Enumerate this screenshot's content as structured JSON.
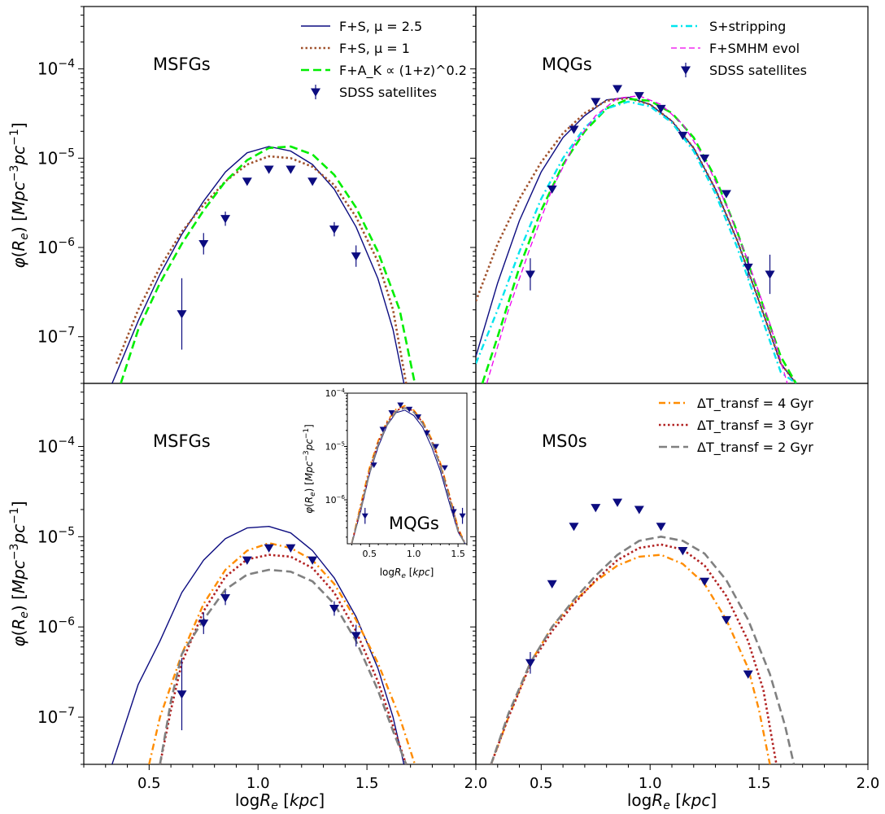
{
  "figure": {
    "ylabel_top": "φ(R_e) [Mpc^-3 pc^-1]",
    "ylabel_bottom": "φ(R_e) [Mpc^-3 pc^-1]",
    "xlabel_left": "logR_e [kpc]",
    "xlabel_right": "logR_e [kpc]"
  },
  "colors": {
    "navy": "#0c0c80",
    "brown": "#a0522d",
    "green": "#00ee00",
    "cyan": "#00e5ee",
    "magenta": "#ee00ee",
    "orange": "#ff8c00",
    "darkred": "#b22222",
    "gray": "#808080"
  },
  "chart_data": [
    {
      "type": "line",
      "panel": "top-left",
      "title": "MSFGs",
      "xlim": [
        0.2,
        2.0
      ],
      "ylim": [
        3e-08,
        0.0005
      ],
      "yscale": "log",
      "legend_position": "top-right",
      "xticks": [],
      "series": [
        {
          "name": "F+S, μ = 2.5",
          "color": "navy",
          "style": "solid",
          "x": [
            0.33,
            0.45,
            0.55,
            0.65,
            0.75,
            0.85,
            0.95,
            1.05,
            1.15,
            1.25,
            1.35,
            1.45,
            1.55,
            1.62,
            1.67
          ],
          "y": [
            3e-08,
            1.5e-07,
            5e-07,
            1.4e-06,
            3.3e-06,
            7e-06,
            1.15e-05,
            1.35e-05,
            1.2e-05,
            8.5e-06,
            4.5e-06,
            1.7e-06,
            4.5e-07,
            1.2e-07,
            3e-08
          ]
        },
        {
          "name": "F+S, μ = 1",
          "color": "brown",
          "style": "dotted",
          "x": [
            0.35,
            0.45,
            0.55,
            0.65,
            0.75,
            0.85,
            0.95,
            1.05,
            1.15,
            1.25,
            1.35,
            1.45,
            1.55,
            1.62,
            1.68
          ],
          "y": [
            5e-08,
            2e-07,
            6e-07,
            1.5e-06,
            3e-06,
            5.5e-06,
            8.5e-06,
            1.05e-05,
            1e-05,
            8e-06,
            5e-06,
            2.2e-06,
            7e-07,
            2e-07,
            3e-08
          ]
        },
        {
          "name": "F+A_K ∝ (1+z)^0.2",
          "color": "green",
          "style": "dashed",
          "x": [
            0.37,
            0.45,
            0.55,
            0.65,
            0.75,
            0.85,
            0.95,
            1.05,
            1.15,
            1.25,
            1.35,
            1.45,
            1.55,
            1.65,
            1.72
          ],
          "y": [
            3e-08,
            1.2e-07,
            4e-07,
            1.1e-06,
            2.6e-06,
            5.5e-06,
            9.5e-06,
            1.3e-05,
            1.35e-05,
            1.1e-05,
            6.5e-06,
            2.8e-06,
            9e-07,
            2e-07,
            3e-08
          ]
        },
        {
          "name": "SDSS satellites",
          "color": "navy",
          "style": "markers",
          "x": [
            0.65,
            0.75,
            0.85,
            0.95,
            1.05,
            1.15,
            1.25,
            1.35,
            1.45
          ],
          "y": [
            1.8e-07,
            1.1e-06,
            2.1e-06,
            5.5e-06,
            7.5e-06,
            7.5e-06,
            5.5e-06,
            1.6e-06,
            8e-07
          ],
          "err": [
            0.4,
            0.12,
            0.08,
            0,
            0,
            0,
            0,
            0.08,
            0.12
          ]
        }
      ]
    },
    {
      "type": "line",
      "panel": "top-right",
      "title": "MQGs",
      "xlim": [
        0.2,
        2.0
      ],
      "ylim": [
        3e-08,
        0.0005
      ],
      "yscale": "log",
      "legend_position": "top-right",
      "xticks": [],
      "series": [
        {
          "name": "",
          "color": "navy",
          "style": "solid",
          "x": [
            0.2,
            0.3,
            0.4,
            0.5,
            0.6,
            0.7,
            0.8,
            0.9,
            1.0,
            1.1,
            1.2,
            1.3,
            1.4,
            1.5,
            1.6,
            1.67
          ],
          "y": [
            6e-08,
            4e-07,
            2e-06,
            7e-06,
            1.7e-05,
            3e-05,
            4.5e-05,
            4.8e-05,
            4e-05,
            2.6e-05,
            1.3e-05,
            4.5e-06,
            1.2e-06,
            2.5e-07,
            5e-08,
            3e-08
          ]
        },
        {
          "name": "",
          "color": "brown",
          "style": "dotted",
          "x": [
            0.2,
            0.3,
            0.4,
            0.5,
            0.6,
            0.7,
            0.8,
            0.9,
            1.0,
            1.1,
            1.2,
            1.3,
            1.4,
            1.5,
            1.6,
            1.67
          ],
          "y": [
            2.5e-07,
            1.1e-06,
            3.5e-06,
            9e-06,
            1.9e-05,
            3.2e-05,
            4.4e-05,
            4.7e-05,
            4e-05,
            2.6e-05,
            1.3e-05,
            4.5e-06,
            1.2e-06,
            2.5e-07,
            5e-08,
            3e-08
          ]
        },
        {
          "name": "",
          "color": "green",
          "style": "dashed",
          "x": [
            0.23,
            0.3,
            0.4,
            0.5,
            0.6,
            0.7,
            0.8,
            0.9,
            1.0,
            1.1,
            1.2,
            1.3,
            1.4,
            1.5,
            1.6,
            1.67
          ],
          "y": [
            3e-08,
            1e-07,
            6e-07,
            2.6e-06,
            8.5e-06,
            2e-05,
            3.6e-05,
            4.6e-05,
            4.4e-05,
            3.2e-05,
            1.7e-05,
            6e-06,
            1.5e-06,
            3e-07,
            6e-08,
            3e-08
          ]
        },
        {
          "name": "S+stripping",
          "color": "cyan",
          "style": "dashdot",
          "x": [
            0.2,
            0.3,
            0.4,
            0.5,
            0.6,
            0.7,
            0.8,
            0.9,
            1.0,
            1.1,
            1.2,
            1.3,
            1.4,
            1.5,
            1.6,
            1.67
          ],
          "y": [
            5e-08,
            2e-07,
            9e-07,
            3.5e-06,
            1e-05,
            2.2e-05,
            3.6e-05,
            4.3e-05,
            3.8e-05,
            2.5e-05,
            1.2e-05,
            4e-06,
            1e-06,
            2e-07,
            4e-08,
            3e-08
          ]
        },
        {
          "name": "F+SMHM evol",
          "color": "magenta",
          "style": "dashed-thin",
          "x": [
            0.25,
            0.35,
            0.45,
            0.55,
            0.65,
            0.75,
            0.85,
            0.95,
            1.05,
            1.15,
            1.25,
            1.35,
            1.45,
            1.55,
            1.63
          ],
          "y": [
            3e-08,
            2e-07,
            1e-06,
            4.5e-06,
            1.4e-05,
            3e-05,
            4.7e-05,
            5e-05,
            4e-05,
            2.4e-05,
            1e-05,
            3e-06,
            7e-07,
            1.4e-07,
            3e-08
          ]
        },
        {
          "name": "SDSS satellites",
          "color": "navy",
          "style": "markers",
          "x": [
            0.45,
            0.55,
            0.65,
            0.75,
            0.85,
            0.95,
            1.05,
            1.15,
            1.25,
            1.35,
            1.45,
            1.55
          ],
          "y": [
            5e-07,
            4.5e-06,
            2.1e-05,
            4.3e-05,
            6e-05,
            5e-05,
            3.6e-05,
            1.8e-05,
            1e-05,
            4e-06,
            6e-07,
            5e-07
          ],
          "err": [
            0.18,
            0,
            0,
            0,
            0,
            0,
            0,
            0,
            0,
            0,
            0.12,
            0.22
          ]
        }
      ]
    },
    {
      "type": "line",
      "panel": "bottom-left",
      "title": "MSFGs",
      "xlim": [
        0.2,
        2.0
      ],
      "ylim": [
        3e-08,
        0.0005
      ],
      "yscale": "log",
      "xticks": [
        "0.5",
        "1.0",
        "1.5",
        "2.0"
      ],
      "series": [
        {
          "name": "",
          "color": "navy",
          "style": "solid",
          "x": [
            0.33,
            0.45,
            0.55,
            0.65,
            0.75,
            0.85,
            0.95,
            1.05,
            1.15,
            1.25,
            1.35,
            1.45,
            1.55,
            1.62,
            1.67
          ],
          "y": [
            3e-08,
            2.3e-07,
            7e-07,
            2.4e-06,
            5.5e-06,
            9.5e-06,
            1.25e-05,
            1.3e-05,
            1.1e-05,
            7e-06,
            3.5e-06,
            1.3e-06,
            3.5e-07,
            1e-07,
            3e-08
          ]
        },
        {
          "name": "",
          "color": "orange",
          "style": "dashdot",
          "x": [
            0.5,
            0.55,
            0.65,
            0.75,
            0.85,
            0.95,
            1.05,
            1.15,
            1.25,
            1.35,
            1.45,
            1.55,
            1.65,
            1.72
          ],
          "y": [
            3e-08,
            1e-07,
            5e-07,
            1.8e-06,
            4.3e-06,
            7e-06,
            8.5e-06,
            7.5e-06,
            5.5e-06,
            3e-06,
            1.2e-06,
            4e-07,
            1e-07,
            3e-08
          ]
        },
        {
          "name": "",
          "color": "darkred",
          "style": "dotted",
          "x": [
            0.55,
            0.6,
            0.65,
            0.75,
            0.85,
            0.95,
            1.05,
            1.15,
            1.25,
            1.35,
            1.45,
            1.55,
            1.62,
            1.68
          ],
          "y": [
            3e-08,
            1.2e-07,
            4e-07,
            1.5e-06,
            3.6e-06,
            5.6e-06,
            6.3e-06,
            6e-06,
            4.5e-06,
            2.4e-06,
            9e-07,
            2.5e-07,
            8e-08,
            3e-08
          ]
        },
        {
          "name": "",
          "color": "gray",
          "style": "dashed",
          "x": [
            0.55,
            0.6,
            0.65,
            0.75,
            0.85,
            0.95,
            1.05,
            1.15,
            1.25,
            1.35,
            1.45,
            1.55,
            1.62,
            1.68
          ],
          "y": [
            3e-08,
            1.5e-07,
            5e-07,
            1.2e-06,
            2.6e-06,
            3.8e-06,
            4.3e-06,
            4.1e-06,
            3.2e-06,
            1.8e-06,
            7e-07,
            2e-07,
            7e-08,
            3e-08
          ]
        },
        {
          "name": "",
          "color": "navy",
          "style": "markers",
          "x": [
            0.65,
            0.75,
            0.85,
            0.95,
            1.05,
            1.15,
            1.25,
            1.35,
            1.45
          ],
          "y": [
            1.8e-07,
            1.1e-06,
            2.1e-06,
            5.5e-06,
            7.5e-06,
            7.5e-06,
            5.5e-06,
            1.6e-06,
            8e-07
          ],
          "err": [
            0.4,
            0.12,
            0.08,
            0,
            0,
            0,
            0,
            0.08,
            0.12
          ]
        }
      ]
    },
    {
      "type": "line",
      "panel": "bottom-left-inset",
      "title": "MQGs",
      "ylabel": "φ(R_e) [Mpc^-3 pc^-1]",
      "xlabel": "logR_e [kpc]",
      "xlim": [
        0.25,
        1.6
      ],
      "ylim": [
        1.5e-07,
        0.0001
      ],
      "yscale": "log",
      "xticks": [
        "0.5",
        "1.0",
        "1.5"
      ],
      "series": [
        {
          "name": "",
          "color": "navy",
          "style": "solid",
          "x": [
            0.3,
            0.4,
            0.5,
            0.6,
            0.7,
            0.8,
            0.9,
            1.0,
            1.1,
            1.2,
            1.3,
            1.4,
            1.5,
            1.58
          ],
          "y": [
            1.5e-07,
            6e-07,
            3e-06,
            1e-05,
            2.5e-05,
            4.3e-05,
            4.8e-05,
            3.8e-05,
            2.3e-05,
            1e-05,
            3.5e-06,
            9e-07,
            2.5e-07,
            1.5e-07
          ]
        },
        {
          "name": "",
          "color": "orange",
          "style": "dashdot",
          "x": [
            0.3,
            0.4,
            0.5,
            0.6,
            0.7,
            0.8,
            0.9,
            1.0,
            1.1,
            1.2,
            1.3,
            1.4,
            1.5,
            1.58
          ],
          "y": [
            1.5e-07,
            8e-07,
            4e-06,
            1.3e-05,
            3e-05,
            5e-05,
            5.8e-05,
            4.8e-05,
            3e-05,
            1.4e-05,
            5e-06,
            1.3e-06,
            3e-07,
            1.5e-07
          ]
        },
        {
          "name": "",
          "color": "darkred",
          "style": "dotted",
          "x": [
            0.3,
            0.4,
            0.5,
            0.6,
            0.7,
            0.8,
            0.9,
            1.0,
            1.1,
            1.2,
            1.3,
            1.4,
            1.5,
            1.58
          ],
          "y": [
            1.5e-07,
            7e-07,
            3.5e-06,
            1.2e-05,
            2.8e-05,
            4.7e-05,
            5.5e-05,
            4.6e-05,
            2.8e-05,
            1.3e-05,
            4.5e-06,
            1.2e-06,
            2.8e-07,
            1.5e-07
          ]
        },
        {
          "name": "",
          "color": "gray",
          "style": "dashed",
          "x": [
            0.3,
            0.4,
            0.5,
            0.6,
            0.7,
            0.8,
            0.9,
            1.0,
            1.1,
            1.2,
            1.3,
            1.4,
            1.5,
            1.58
          ],
          "y": [
            1.5e-07,
            6.5e-07,
            3.2e-06,
            1.1e-05,
            2.6e-05,
            4.5e-05,
            5.3e-05,
            4.4e-05,
            2.7e-05,
            1.25e-05,
            4.3e-06,
            1.1e-06,
            2.6e-07,
            1.5e-07
          ]
        },
        {
          "name": "",
          "color": "navy",
          "style": "markers",
          "x": [
            0.45,
            0.55,
            0.65,
            0.75,
            0.85,
            0.95,
            1.05,
            1.15,
            1.25,
            1.35,
            1.45,
            1.55
          ],
          "y": [
            5e-07,
            4.5e-06,
            2.1e-05,
            4.3e-05,
            6e-05,
            5e-05,
            3.6e-05,
            1.8e-05,
            1e-05,
            4e-06,
            6e-07,
            5e-07
          ],
          "err": [
            0.15,
            0,
            0,
            0,
            0,
            0,
            0,
            0,
            0,
            0,
            0.1,
            0.15
          ]
        }
      ]
    },
    {
      "type": "line",
      "panel": "bottom-right",
      "title": "MS0s",
      "xlim": [
        0.2,
        2.0
      ],
      "ylim": [
        3e-08,
        0.0005
      ],
      "yscale": "log",
      "legend_position": "top-right",
      "xticks": [
        "0.5",
        "1.0",
        "1.5",
        "2.0"
      ],
      "series": [
        {
          "name": "ΔT_transf = 4 Gyr",
          "color": "orange",
          "style": "dashdot",
          "x": [
            0.27,
            0.35,
            0.45,
            0.55,
            0.65,
            0.75,
            0.85,
            0.95,
            1.05,
            1.15,
            1.25,
            1.35,
            1.45,
            1.5,
            1.55
          ],
          "y": [
            3e-08,
            1e-07,
            4e-07,
            1e-06,
            1.9e-06,
            3.2e-06,
            4.8e-06,
            6e-06,
            6.3e-06,
            5e-06,
            3e-06,
            1.2e-06,
            3.5e-07,
            1.2e-07,
            3e-08
          ]
        },
        {
          "name": "ΔT_transf = 3 Gyr",
          "color": "darkred",
          "style": "dotted",
          "x": [
            0.27,
            0.35,
            0.45,
            0.55,
            0.65,
            0.75,
            0.85,
            0.95,
            1.05,
            1.15,
            1.25,
            1.35,
            1.45,
            1.52,
            1.58
          ],
          "y": [
            3e-08,
            1e-07,
            3.8e-07,
            9e-07,
            1.8e-06,
            3.3e-06,
            5.5e-06,
            7.5e-06,
            8.2e-06,
            7.2e-06,
            4.8e-06,
            2.2e-06,
            7e-07,
            2e-07,
            3e-08
          ]
        },
        {
          "name": "ΔT_transf = 2 Gyr",
          "color": "gray",
          "style": "dashed",
          "x": [
            0.27,
            0.35,
            0.45,
            0.55,
            0.65,
            0.75,
            0.85,
            0.95,
            1.05,
            1.15,
            1.25,
            1.35,
            1.45,
            1.55,
            1.62,
            1.66
          ],
          "y": [
            3e-08,
            1.1e-07,
            4e-07,
            1e-06,
            2e-06,
            3.7e-06,
            6.3e-06,
            9e-06,
            1e-05,
            9e-06,
            6.5e-06,
            3.3e-06,
            1.2e-06,
            3e-07,
            8e-08,
            3e-08
          ]
        },
        {
          "name": "",
          "color": "navy",
          "style": "markers",
          "x": [
            0.45,
            0.55,
            0.65,
            0.75,
            0.85,
            0.95,
            1.05,
            1.15,
            1.25,
            1.35,
            1.45
          ],
          "y": [
            4e-07,
            3e-06,
            1.3e-05,
            2.1e-05,
            2.4e-05,
            2e-05,
            1.3e-05,
            7e-06,
            3.2e-06,
            1.2e-06,
            3e-07
          ],
          "err": [
            0.12,
            0,
            0,
            0,
            0,
            0,
            0,
            0,
            0,
            0,
            0
          ]
        }
      ]
    }
  ]
}
